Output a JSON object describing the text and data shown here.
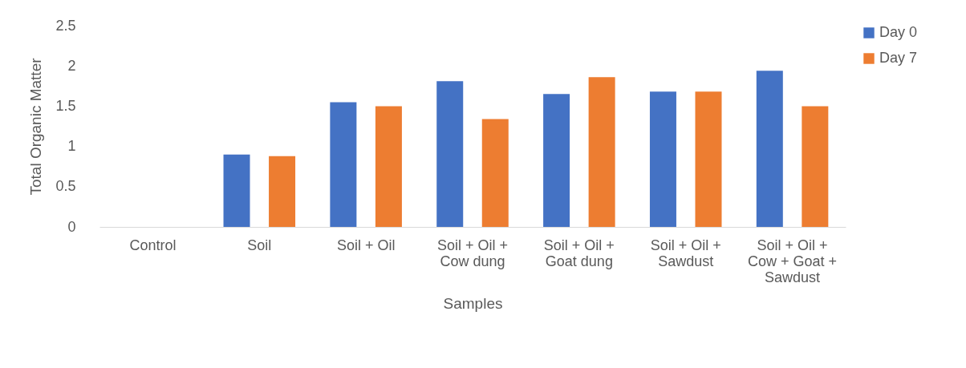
{
  "chart_data": {
    "type": "bar",
    "xlabel": "Samples",
    "ylabel": "Total Organic Matter",
    "categories": [
      "Control",
      "Soil",
      "Soil + Oil",
      "Soil + Oil + Cow dung",
      "Soil + Oil + Goat dung",
      "Soil + Oil + Sawdust",
      "Soil + Oil + Cow + Goat + Sawdust"
    ],
    "series": [
      {
        "name": "Day 0",
        "color": "#4472c4",
        "values": [
          0,
          0.9,
          1.55,
          1.81,
          1.65,
          1.68,
          1.94
        ]
      },
      {
        "name": "Day 7",
        "color": "#ed7d31",
        "values": [
          0,
          0.88,
          1.5,
          1.34,
          1.86,
          1.68,
          1.5
        ]
      }
    ],
    "ylim": [
      0,
      2.5
    ],
    "yticks": [
      0,
      0.5,
      1,
      1.5,
      2,
      2.5
    ],
    "grid": false,
    "legend": "right"
  }
}
